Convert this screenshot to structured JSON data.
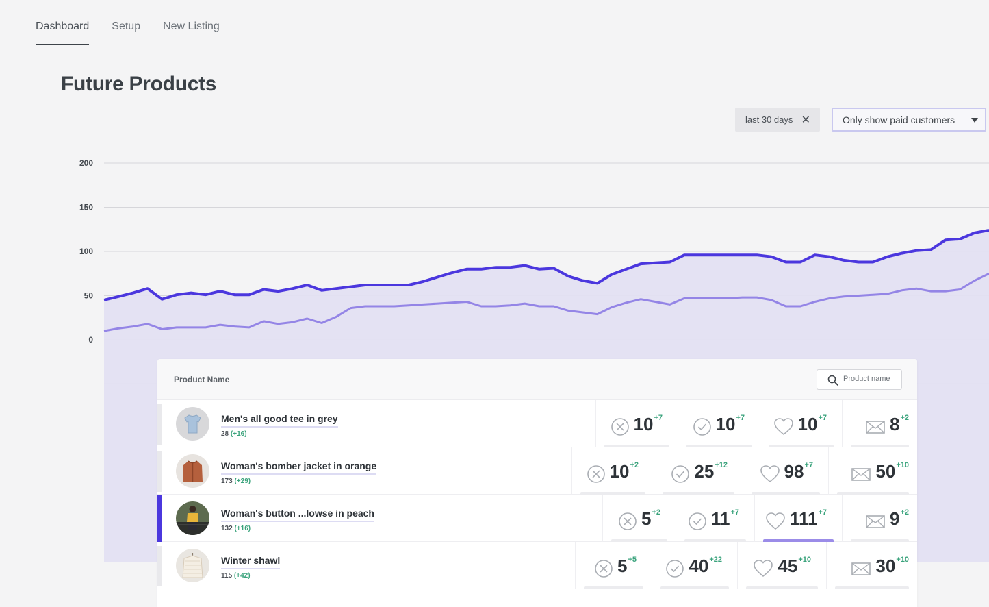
{
  "nav": {
    "tabs": [
      {
        "label": "Dashboard",
        "active": true
      },
      {
        "label": "Setup"
      },
      {
        "label": "New Listing"
      }
    ]
  },
  "page": {
    "title": "Future Products"
  },
  "filters": {
    "date_chip": "last 30 days",
    "customer_select": "Only show paid customers"
  },
  "colors": {
    "accent": "#4b37de",
    "series_secondary": "#9485e6",
    "fill": "#e3e0f2",
    "positive": "#3aa37c"
  },
  "chart_data": {
    "type": "area",
    "y_ticks": [
      "200",
      "150",
      "100",
      "50",
      "0"
    ],
    "ylim": [
      0,
      200
    ],
    "grid": true,
    "series": [
      {
        "values": [
          45,
          49,
          53,
          58,
          46,
          51,
          53,
          51,
          55,
          51,
          51,
          57,
          55,
          58,
          62,
          56,
          58,
          60,
          62,
          62,
          62,
          62,
          66,
          71,
          76,
          80,
          80,
          82,
          82,
          84,
          80,
          81,
          72,
          67,
          64,
          74,
          80,
          86,
          87,
          88,
          96,
          96,
          96,
          96,
          96,
          96,
          94,
          88,
          88,
          96,
          94,
          90,
          88,
          88,
          94,
          98,
          101,
          102,
          113,
          114,
          121,
          124
        ]
      },
      {
        "values": [
          10,
          13,
          15,
          18,
          12,
          14,
          14,
          14,
          17,
          15,
          14,
          21,
          18,
          20,
          24,
          19,
          26,
          36,
          38,
          38,
          38,
          39,
          40,
          41,
          42,
          43,
          38,
          38,
          39,
          41,
          38,
          38,
          33,
          31,
          29,
          37,
          42,
          46,
          43,
          40,
          47,
          47,
          47,
          47,
          48,
          48,
          45,
          38,
          38,
          43,
          47,
          49,
          50,
          51,
          52,
          56,
          58,
          55,
          55,
          57,
          67,
          75
        ]
      }
    ]
  },
  "table": {
    "column_title": "Product Name",
    "search_placeholder": "Product name",
    "rows": [
      {
        "name": "Men's all good tee in grey",
        "count": "28",
        "delta": "(+16)",
        "thumb": "tee",
        "selected": false,
        "metrics": [
          {
            "icon": "x-circle-icon",
            "value": "10",
            "delta": "+7"
          },
          {
            "icon": "check-circle-icon",
            "value": "10",
            "delta": "+7"
          },
          {
            "icon": "heart-icon",
            "value": "10",
            "delta": "+7"
          },
          {
            "icon": "mail-icon",
            "value": "8",
            "delta": "+2"
          }
        ]
      },
      {
        "name": "Woman's bomber jacket in orange",
        "count": "173",
        "delta": "(+29)",
        "thumb": "jacket",
        "selected": false,
        "metrics": [
          {
            "icon": "x-circle-icon",
            "value": "10",
            "delta": "+2"
          },
          {
            "icon": "check-circle-icon",
            "value": "25",
            "delta": "+12"
          },
          {
            "icon": "heart-icon",
            "value": "98",
            "delta": "+7"
          },
          {
            "icon": "mail-icon",
            "value": "50",
            "delta": "+10"
          }
        ]
      },
      {
        "name": "Woman's button ...lowse in peach",
        "count": "132",
        "delta": "(+16)",
        "thumb": "blouse",
        "selected": true,
        "metrics": [
          {
            "icon": "x-circle-icon",
            "value": "5",
            "delta": "+2"
          },
          {
            "icon": "check-circle-icon",
            "value": "11",
            "delta": "+7"
          },
          {
            "icon": "heart-icon",
            "value": "111",
            "delta": "+7",
            "active": true
          },
          {
            "icon": "mail-icon",
            "value": "9",
            "delta": "+2"
          }
        ]
      },
      {
        "name": "Winter shawl",
        "count": "115",
        "delta": "(+42)",
        "thumb": "shawl",
        "selected": false,
        "metrics": [
          {
            "icon": "x-circle-icon",
            "value": "5",
            "delta": "+5"
          },
          {
            "icon": "check-circle-icon",
            "value": "40",
            "delta": "+22"
          },
          {
            "icon": "heart-icon",
            "value": "45",
            "delta": "+10"
          },
          {
            "icon": "mail-icon",
            "value": "30",
            "delta": "+10"
          }
        ]
      }
    ]
  }
}
